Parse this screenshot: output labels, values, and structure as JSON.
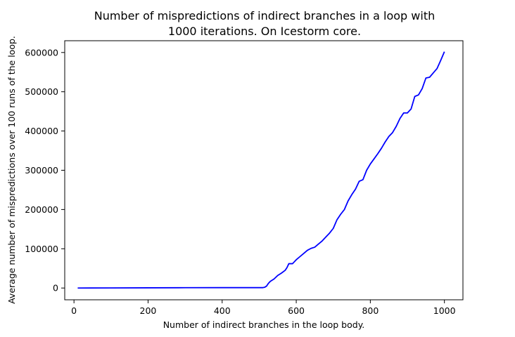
{
  "chart_data": {
    "type": "line",
    "title_lines": [
      "Number of mispredictions of indirect branches in a loop with",
      "1000 iterations. On Icestorm core."
    ],
    "xlabel": "Number of indirect branches in the loop body.",
    "ylabel": "Average number of mispredictions over 100 runs of the loop.",
    "xlim": [
      -25,
      1050
    ],
    "ylim": [
      -30000,
      630000
    ],
    "xticks": [
      0,
      200,
      400,
      600,
      800,
      1000
    ],
    "yticks": [
      0,
      100000,
      200000,
      300000,
      400000,
      500000,
      600000
    ],
    "grid": false,
    "line_color": "#0000ff",
    "series": [
      {
        "x": [
          10,
          100,
          200,
          300,
          400,
          450,
          500,
          510,
          515,
          520,
          525,
          530,
          540,
          550,
          560,
          570,
          575,
          580,
          585,
          590,
          600,
          610,
          620,
          630,
          640,
          650,
          660,
          670,
          680,
          690,
          700,
          710,
          720,
          730,
          740,
          750,
          760,
          765,
          770,
          780,
          790,
          800,
          810,
          820,
          830,
          840,
          850,
          860,
          870,
          880,
          890,
          900,
          910,
          920,
          930,
          940,
          950,
          960,
          970,
          980,
          990,
          1000
        ],
        "y": [
          0,
          200,
          500,
          800,
          1000,
          1000,
          1000,
          1000,
          2000,
          5000,
          12000,
          17000,
          23000,
          32000,
          38000,
          45000,
          52000,
          62000,
          62000,
          62000,
          72000,
          80000,
          88000,
          96000,
          101000,
          104000,
          112000,
          120000,
          130000,
          140000,
          152000,
          174000,
          188000,
          200000,
          222000,
          238000,
          252000,
          262000,
          272000,
          276000,
          300000,
          316000,
          329000,
          342000,
          356000,
          372000,
          386000,
          396000,
          412000,
          432000,
          446000,
          446000,
          456000,
          488000,
          492000,
          508000,
          535000,
          537000,
          548000,
          559000,
          580000,
          602000
        ]
      }
    ]
  }
}
